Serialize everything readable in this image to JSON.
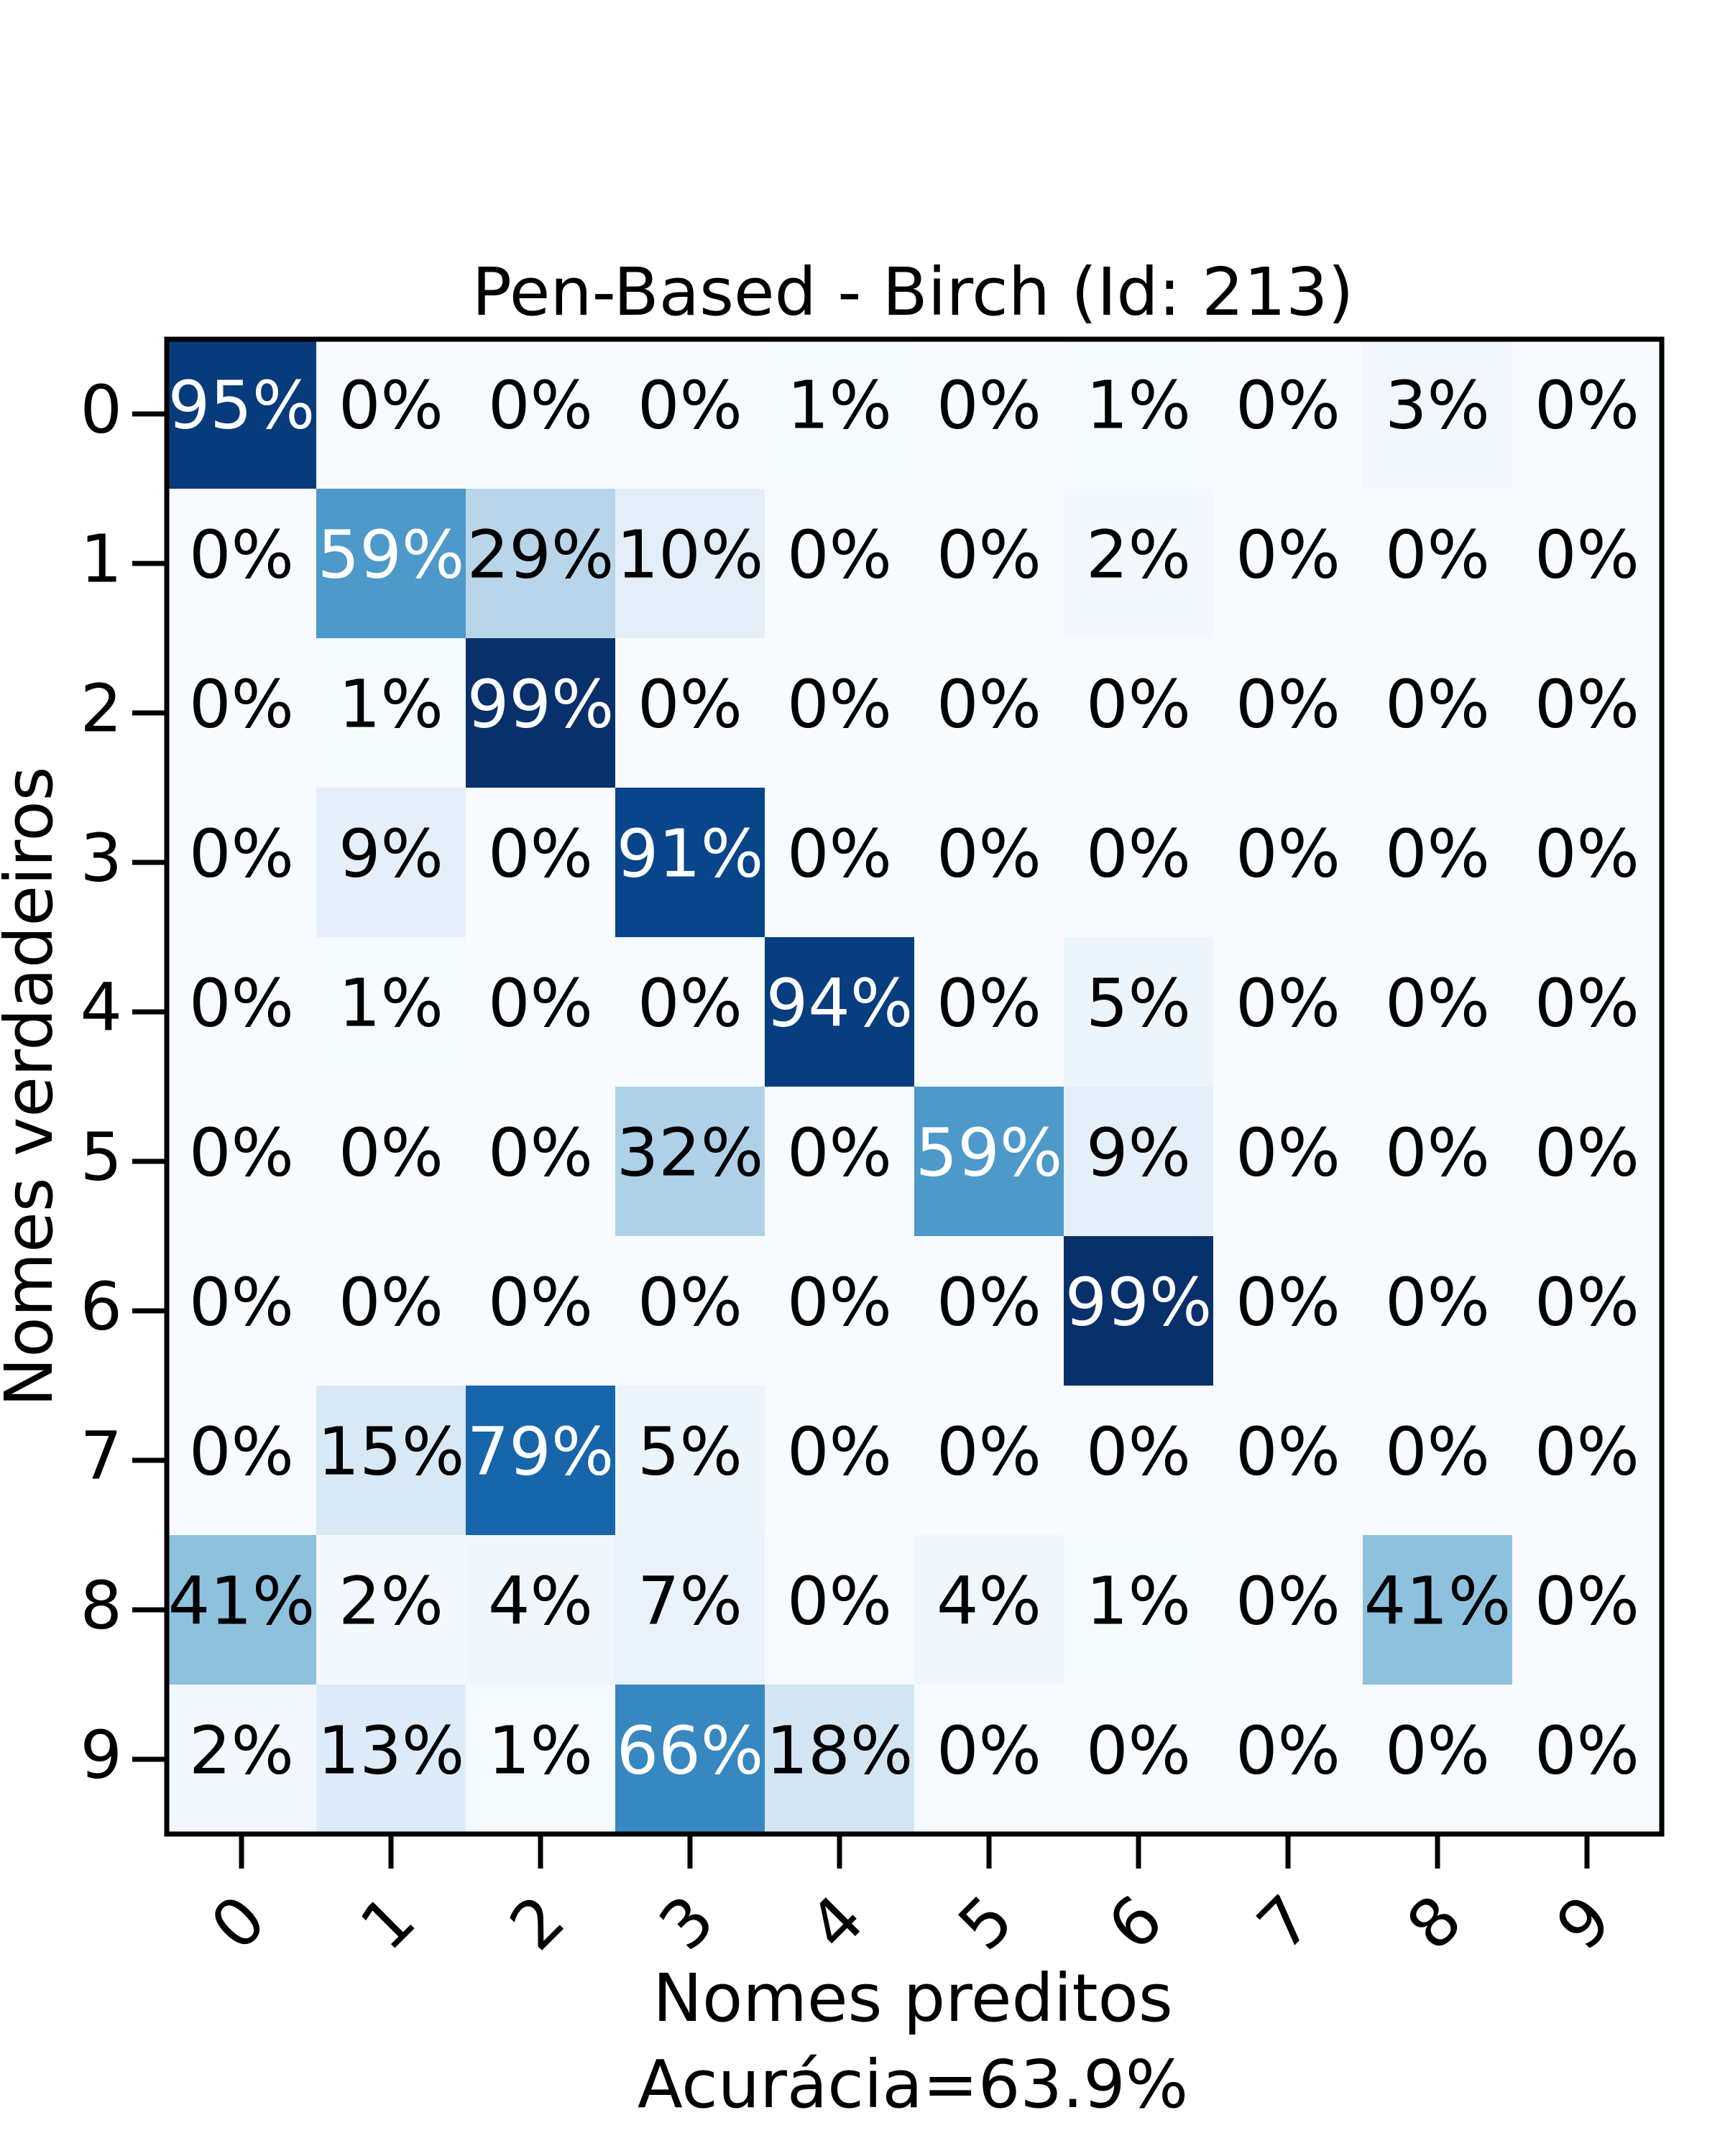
{
  "chart_data": {
    "type": "heatmap",
    "title": "Pen-Based - Birch (Id: 213)",
    "xlabel": "Nomes preditos",
    "xlabel_sub": "Acurácia=63.9%",
    "ylabel": "Nomes verdadeiros",
    "x_categories": [
      "0",
      "1",
      "2",
      "3",
      "4",
      "5",
      "6",
      "7",
      "8",
      "9"
    ],
    "y_categories": [
      "0",
      "1",
      "2",
      "3",
      "4",
      "5",
      "6",
      "7",
      "8",
      "9"
    ],
    "value_format": "percent",
    "colormap": "Blues",
    "values": [
      [
        95,
        0,
        0,
        0,
        1,
        0,
        1,
        0,
        3,
        0
      ],
      [
        0,
        59,
        29,
        10,
        0,
        0,
        2,
        0,
        0,
        0
      ],
      [
        0,
        1,
        99,
        0,
        0,
        0,
        0,
        0,
        0,
        0
      ],
      [
        0,
        9,
        0,
        91,
        0,
        0,
        0,
        0,
        0,
        0
      ],
      [
        0,
        1,
        0,
        0,
        94,
        0,
        5,
        0,
        0,
        0
      ],
      [
        0,
        0,
        0,
        32,
        0,
        59,
        9,
        0,
        0,
        0
      ],
      [
        0,
        0,
        0,
        0,
        0,
        0,
        99,
        0,
        0,
        0
      ],
      [
        0,
        15,
        79,
        5,
        0,
        0,
        0,
        0,
        0,
        0
      ],
      [
        41,
        2,
        4,
        7,
        0,
        4,
        1,
        0,
        41,
        0
      ],
      [
        2,
        13,
        1,
        66,
        18,
        0,
        0,
        0,
        0,
        0
      ]
    ]
  }
}
